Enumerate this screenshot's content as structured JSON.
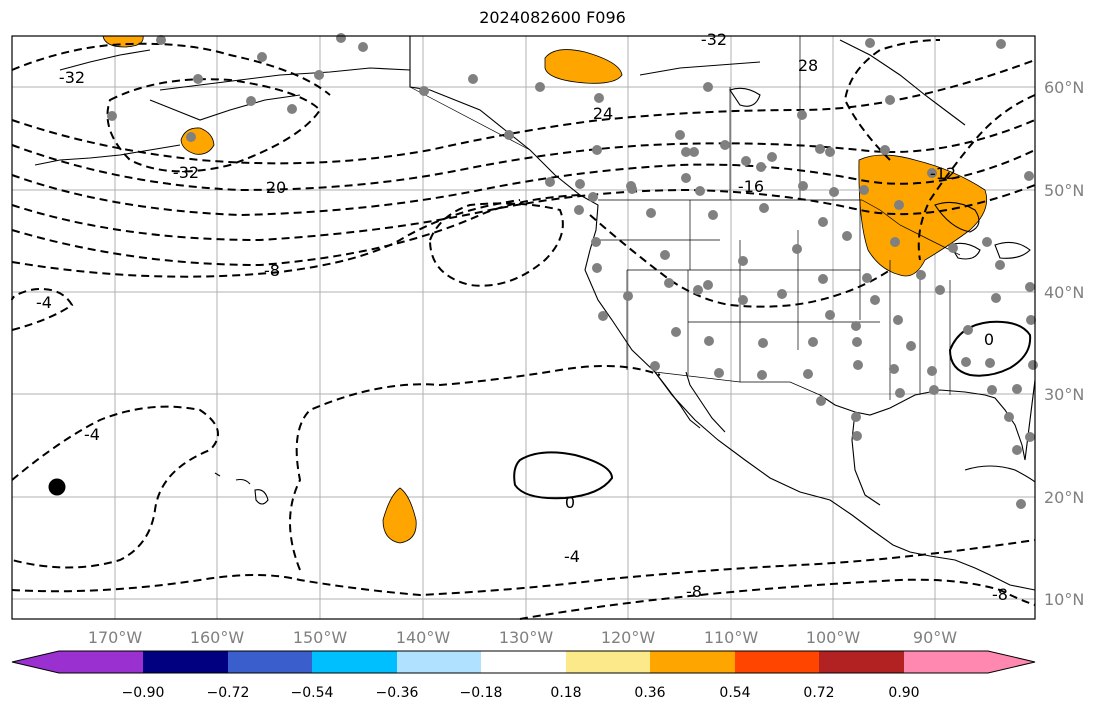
{
  "title": "2024082600 F096",
  "lon_labels": [
    "170°W",
    "160°W",
    "150°W",
    "140°W",
    "130°W",
    "120°W",
    "110°W",
    "100°W",
    "90°W"
  ],
  "lat_labels": [
    "60°N",
    "50°N",
    "40°N",
    "30°N",
    "20°N",
    "10°N"
  ],
  "contour_labels": [
    "-32",
    "-32",
    "-32",
    "28",
    "24",
    "20",
    "-16",
    "-12",
    "-8",
    "-4",
    "-4",
    "0",
    "0",
    "-4",
    "-8",
    "-8"
  ],
  "colorbar": {
    "tick_labels": [
      "−0.90",
      "−0.72",
      "−0.54",
      "−0.36",
      "−0.18",
      "0.18",
      "0.36",
      "0.54",
      "0.72",
      "0.90"
    ],
    "colors": [
      "#9b30d0",
      "#000080",
      "#3a5fcd",
      "#00bfff",
      "#b0e2ff",
      "#ffffff",
      "#fce98a",
      "#ffa500",
      "#ff4500",
      "#b22222",
      "#ff88b0"
    ]
  },
  "colors": {
    "positive_anomaly": "#ffa500",
    "station_dot": "#808080",
    "grid": "#b0b0b0"
  }
}
